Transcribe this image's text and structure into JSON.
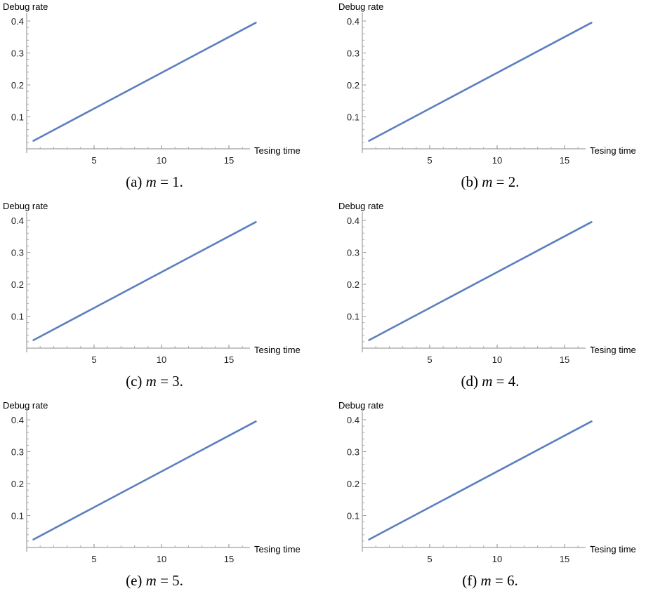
{
  "chart_data": [
    {
      "type": "line",
      "caption_tag": "(a)",
      "caption_var": "m",
      "caption_eq": " = 1.",
      "xlabel": "Tesing time",
      "ylabel": "Debug rate",
      "xlim": [
        0,
        17.5
      ],
      "ylim": [
        0,
        0.4
      ],
      "xticks": [
        5,
        10,
        15
      ],
      "yticks": [
        0.1,
        0.2,
        0.3,
        0.4
      ],
      "x": [
        0.5,
        17
      ],
      "y": [
        0.025,
        0.395
      ],
      "color": "#5b7fbf"
    },
    {
      "type": "line",
      "caption_tag": "(b)",
      "caption_var": "m",
      "caption_eq": " = 2.",
      "xlabel": "Tesing time",
      "ylabel": "Debug rate",
      "xlim": [
        0,
        17.5
      ],
      "ylim": [
        0,
        0.4
      ],
      "xticks": [
        5,
        10,
        15
      ],
      "yticks": [
        0.1,
        0.2,
        0.3,
        0.4
      ],
      "x": [
        0.5,
        17
      ],
      "y": [
        0.025,
        0.395
      ],
      "color": "#5b7fbf"
    },
    {
      "type": "line",
      "caption_tag": "(c)",
      "caption_var": "m",
      "caption_eq": " = 3.",
      "xlabel": "Tesing time",
      "ylabel": "Debug rate",
      "xlim": [
        0,
        17.5
      ],
      "ylim": [
        0,
        0.4
      ],
      "xticks": [
        5,
        10,
        15
      ],
      "yticks": [
        0.1,
        0.2,
        0.3,
        0.4
      ],
      "x": [
        0.5,
        17
      ],
      "y": [
        0.025,
        0.395
      ],
      "color": "#5b7fbf"
    },
    {
      "type": "line",
      "caption_tag": "(d)",
      "caption_var": "m",
      "caption_eq": " = 4.",
      "xlabel": "Tesing time",
      "ylabel": "Debug rate",
      "xlim": [
        0,
        17.5
      ],
      "ylim": [
        0,
        0.4
      ],
      "xticks": [
        5,
        10,
        15
      ],
      "yticks": [
        0.1,
        0.2,
        0.3,
        0.4
      ],
      "x": [
        0.5,
        17
      ],
      "y": [
        0.025,
        0.395
      ],
      "color": "#5b7fbf"
    },
    {
      "type": "line",
      "caption_tag": "(e)",
      "caption_var": "m",
      "caption_eq": " = 5.",
      "xlabel": "Tesing time",
      "ylabel": "Debug rate",
      "xlim": [
        0,
        17.5
      ],
      "ylim": [
        0,
        0.4
      ],
      "xticks": [
        5,
        10,
        15
      ],
      "yticks": [
        0.1,
        0.2,
        0.3,
        0.4
      ],
      "x": [
        0.5,
        17
      ],
      "y": [
        0.025,
        0.395
      ],
      "color": "#5b7fbf"
    },
    {
      "type": "line",
      "caption_tag": "(f)",
      "caption_var": "m",
      "caption_eq": " = 6.",
      "xlabel": "Tesing time",
      "ylabel": "Debug rate",
      "xlim": [
        0,
        17.5
      ],
      "ylim": [
        0,
        0.4
      ],
      "xticks": [
        5,
        10,
        15
      ],
      "yticks": [
        0.1,
        0.2,
        0.3,
        0.4
      ],
      "x": [
        0.5,
        17
      ],
      "y": [
        0.025,
        0.395
      ],
      "color": "#5b7fbf"
    }
  ]
}
